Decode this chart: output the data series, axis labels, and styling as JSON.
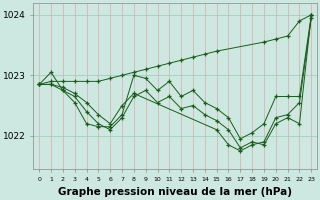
{
  "bg_color": "#cce8e0",
  "plot_bg_color": "#cce8e0",
  "line_color": "#1a5c1a",
  "grid_color": "#99ccbb",
  "xlabel": "Graphe pression niveau de la mer (hPa)",
  "xlabel_fontsize": 7.5,
  "xlabel_bold": true,
  "yticks": [
    1022,
    1023,
    1024
  ],
  "ytick_fontsize": 6.5,
  "xtick_fontsize": 4.5,
  "xlim": [
    -0.5,
    23.5
  ],
  "ylim": [
    1021.45,
    1024.2
  ],
  "xtick_labels": [
    "0",
    "1",
    "2",
    "3",
    "4",
    "5",
    "6",
    "7",
    "8",
    "9",
    "10",
    "11",
    "12",
    "13",
    "14",
    "15",
    "16",
    "17",
    "18",
    "19",
    "20",
    "21",
    "22",
    "23"
  ],
  "series": [
    {
      "x": [
        0,
        1,
        2,
        3,
        4,
        5,
        6,
        7,
        8,
        9,
        10,
        11,
        12,
        13,
        14,
        15,
        19,
        20,
        21,
        22,
        23
      ],
      "y": [
        1022.85,
        1022.9,
        1022.9,
        1022.9,
        1022.9,
        1022.9,
        1022.95,
        1023.0,
        1023.05,
        1023.1,
        1023.15,
        1023.2,
        1023.25,
        1023.3,
        1023.35,
        1023.4,
        1023.55,
        1023.6,
        1023.65,
        1023.9,
        1024.0
      ]
    },
    {
      "x": [
        0,
        1,
        2,
        3,
        4,
        5,
        6,
        7,
        8,
        9,
        10,
        11,
        12,
        13,
        14,
        15,
        16,
        17,
        18,
        19,
        20,
        21,
        22,
        23
      ],
      "y": [
        1022.85,
        1023.05,
        1022.75,
        1022.55,
        1022.2,
        1022.15,
        1022.15,
        1022.35,
        1023.0,
        1022.95,
        1022.75,
        1022.9,
        1022.65,
        1022.75,
        1022.55,
        1022.45,
        1022.3,
        1021.95,
        1022.05,
        1022.2,
        1022.65,
        1022.65,
        1022.65,
        1024.0
      ]
    },
    {
      "x": [
        0,
        1,
        2,
        3,
        4,
        5,
        6,
        7,
        8,
        9,
        10,
        11,
        12,
        13,
        14,
        15,
        16,
        17,
        18,
        19,
        20,
        21,
        22,
        23
      ],
      "y": [
        1022.85,
        1022.85,
        1022.75,
        1022.65,
        1022.4,
        1022.2,
        1022.1,
        1022.3,
        1022.65,
        1022.75,
        1022.55,
        1022.65,
        1022.45,
        1022.5,
        1022.35,
        1022.25,
        1022.1,
        1021.8,
        1021.9,
        1021.85,
        1022.2,
        1022.3,
        1022.2,
        1024.0
      ]
    },
    {
      "x": [
        0,
        1,
        2,
        3,
        4,
        5,
        6,
        7,
        8,
        15,
        16,
        17,
        18,
        19,
        20,
        21,
        22,
        23
      ],
      "y": [
        1022.85,
        1022.85,
        1022.8,
        1022.7,
        1022.55,
        1022.35,
        1022.2,
        1022.5,
        1022.7,
        1022.1,
        1021.85,
        1021.75,
        1021.85,
        1021.9,
        1022.3,
        1022.35,
        1022.55,
        1023.95
      ]
    }
  ]
}
